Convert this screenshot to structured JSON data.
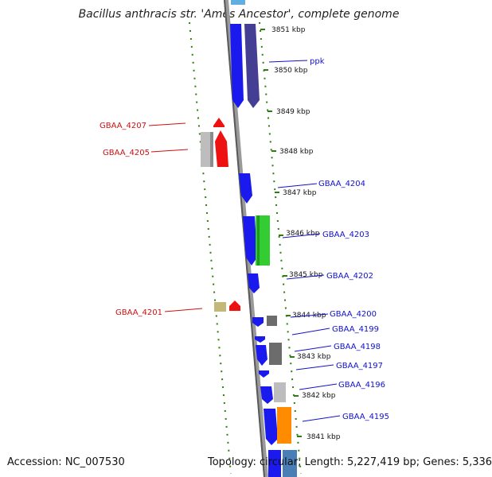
{
  "title": "Bacillus anthracis str. 'Ames Ancestor', complete genome",
  "accession": "Accession: NC_007530",
  "summary": "Topology: circular; Length: 5,227,419 bp; Genes: 5,336",
  "colors": {
    "forward_cds": "#1a1aee",
    "reverse_cds": "#ee1111",
    "backbone": "#8a8a8a",
    "ruler_ticks": "#2e7d10",
    "label_forward": "#1111cc",
    "label_reverse": "#cc1111"
  },
  "scale_labels": [
    "3851 kbp",
    "3850 kbp",
    "3849 kbp",
    "3848 kbp",
    "3847 kbp",
    "3846 kbp",
    "3845 kbp",
    "3844 kbp",
    "3843 kbp",
    "3842 kbp",
    "3841 kbp"
  ],
  "gene_labels_right": [
    "ppk",
    "GBAA_4204",
    "GBAA_4203",
    "GBAA_4202",
    "GBAA_4200",
    "GBAA_4199",
    "GBAA_4198",
    "GBAA_4197",
    "GBAA_4196",
    "GBAA_4195"
  ],
  "gene_labels_left": [
    "GBAA_4207",
    "GBAA_4205",
    "GBAA_4201"
  ]
}
